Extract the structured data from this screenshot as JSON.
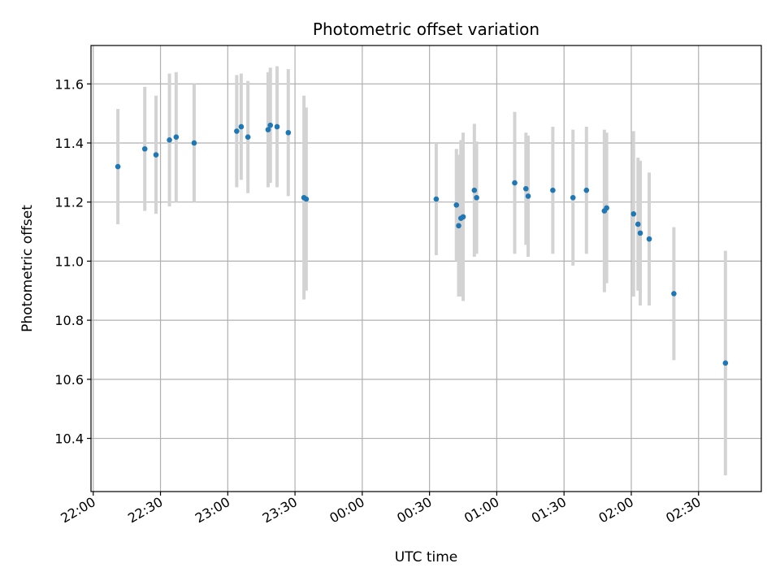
{
  "chart_data": {
    "type": "scatter",
    "title": "Photometric offset variation",
    "xlabel": "UTC time",
    "ylabel": "Photometric offset",
    "x_ticks": [
      "22:00",
      "22:30",
      "23:00",
      "23:30",
      "00:00",
      "00:30",
      "01:00",
      "01:30",
      "02:00",
      "02:30"
    ],
    "y_ticks": [
      "10.4",
      "10.6",
      "10.8",
      "11.0",
      "11.2",
      "11.4",
      "11.6"
    ],
    "xlim": [
      "21:59",
      "02:58"
    ],
    "ylim": [
      10.22,
      11.73
    ],
    "grid": true,
    "marker_color": "#1f77b4",
    "errorbar_color": "#d3d3d3",
    "points": [
      {
        "t": "22:11",
        "y": 11.32,
        "err": 0.195
      },
      {
        "t": "22:23",
        "y": 11.38,
        "err": 0.21
      },
      {
        "t": "22:28",
        "y": 11.36,
        "err": 0.2
      },
      {
        "t": "22:34",
        "y": 11.41,
        "err": 0.225
      },
      {
        "t": "22:37",
        "y": 11.42,
        "err": 0.22
      },
      {
        "t": "22:45",
        "y": 11.4,
        "err": 0.2
      },
      {
        "t": "23:04",
        "y": 11.44,
        "err": 0.19
      },
      {
        "t": "23:06",
        "y": 11.455,
        "err": 0.18
      },
      {
        "t": "23:09",
        "y": 11.42,
        "err": 0.19
      },
      {
        "t": "23:18",
        "y": 11.445,
        "err": 0.195
      },
      {
        "t": "23:19",
        "y": 11.46,
        "err": 0.195
      },
      {
        "t": "23:22",
        "y": 11.455,
        "err": 0.205
      },
      {
        "t": "23:27",
        "y": 11.435,
        "err": 0.215
      },
      {
        "t": "23:34",
        "y": 11.215,
        "err": 0.345
      },
      {
        "t": "23:35",
        "y": 11.21,
        "err": 0.31
      },
      {
        "t": "00:33",
        "y": 11.21,
        "err": 0.19
      },
      {
        "t": "00:42",
        "y": 11.19,
        "err": 0.19
      },
      {
        "t": "00:43",
        "y": 11.12,
        "err": 0.24
      },
      {
        "t": "00:44",
        "y": 11.145,
        "err": 0.265
      },
      {
        "t": "00:45",
        "y": 11.15,
        "err": 0.285
      },
      {
        "t": "00:50",
        "y": 11.24,
        "err": 0.225
      },
      {
        "t": "00:51",
        "y": 11.215,
        "err": 0.19
      },
      {
        "t": "01:08",
        "y": 11.265,
        "err": 0.24
      },
      {
        "t": "01:13",
        "y": 11.245,
        "err": 0.19
      },
      {
        "t": "01:14",
        "y": 11.22,
        "err": 0.205
      },
      {
        "t": "01:25",
        "y": 11.24,
        "err": 0.215
      },
      {
        "t": "01:34",
        "y": 11.215,
        "err": 0.23
      },
      {
        "t": "01:40",
        "y": 11.24,
        "err": 0.215
      },
      {
        "t": "01:48",
        "y": 11.17,
        "err": 0.275
      },
      {
        "t": "01:49",
        "y": 11.18,
        "err": 0.255
      },
      {
        "t": "02:01",
        "y": 11.16,
        "err": 0.28
      },
      {
        "t": "02:03",
        "y": 11.125,
        "err": 0.225
      },
      {
        "t": "02:04",
        "y": 11.095,
        "err": 0.245
      },
      {
        "t": "02:08",
        "y": 11.075,
        "err": 0.225
      },
      {
        "t": "02:19",
        "y": 10.89,
        "err": 0.225
      },
      {
        "t": "02:42",
        "y": 10.655,
        "err": 0.38
      }
    ]
  }
}
